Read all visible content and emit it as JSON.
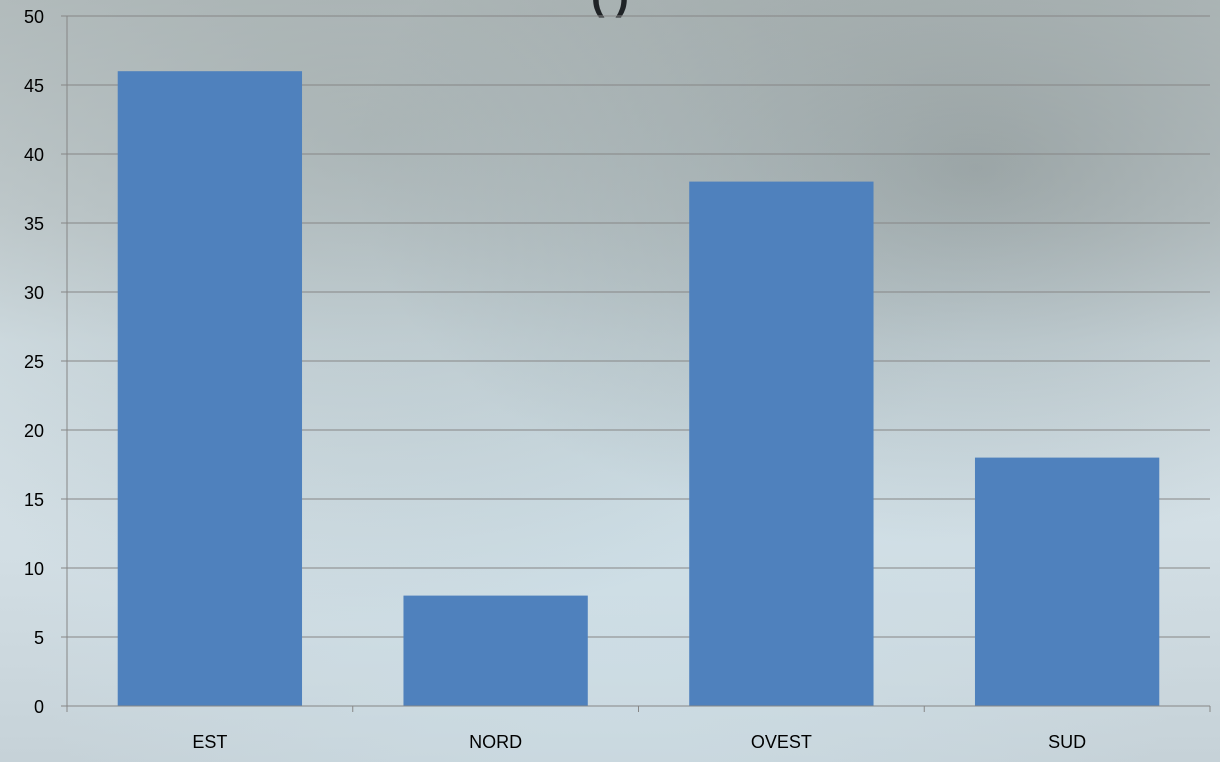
{
  "chart_data": {
    "type": "bar",
    "title": "",
    "categories": [
      "EST",
      "NORD",
      "OVEST",
      "SUD"
    ],
    "values": [
      46,
      8,
      38,
      18
    ],
    "xlabel": "",
    "ylabel": "",
    "ylim": [
      0,
      50
    ],
    "yticks": [
      "0",
      "5",
      "10",
      "15",
      "20",
      "25",
      "30",
      "35",
      "40",
      "45",
      "50"
    ],
    "grid": true,
    "legend": "none",
    "bar_color": "#4f81bd",
    "gridline_color": "#868686"
  },
  "visible_title_fragment": "(          )"
}
